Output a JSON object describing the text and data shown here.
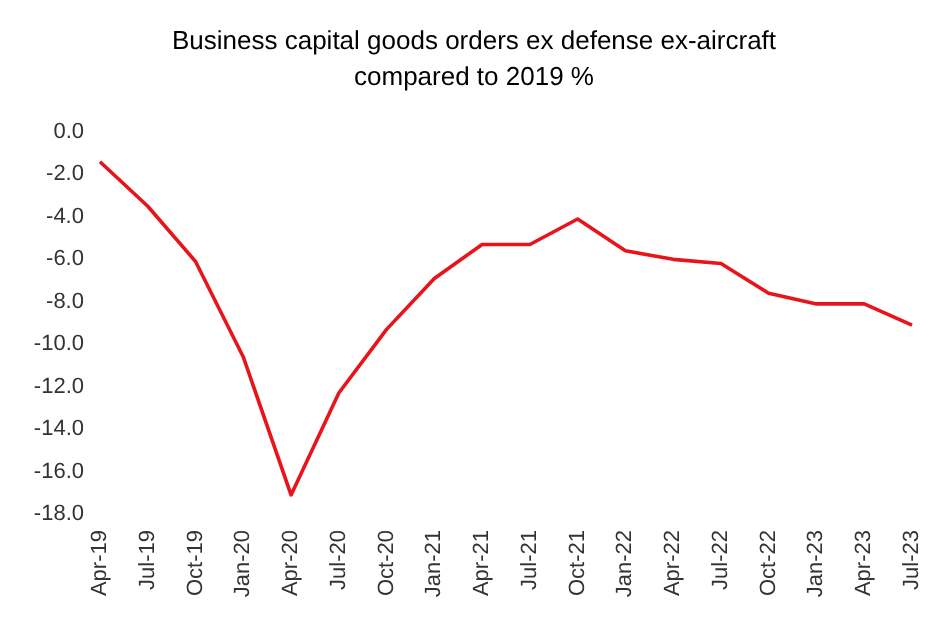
{
  "chart_data": {
    "type": "line",
    "title": "Business capital goods orders ex defense ex-aircraft\ncompared to 2019 %",
    "categories": [
      "Apr-19",
      "Jul-19",
      "Oct-19",
      "Jan-20",
      "Apr-20",
      "Jul-20",
      "Oct-20",
      "Jan-21",
      "Apr-21",
      "Jul-21",
      "Oct-21",
      "Jan-22",
      "Apr-22",
      "Jul-22",
      "Oct-22",
      "Jan-23",
      "Apr-23",
      "Jul-23"
    ],
    "series": [
      {
        "color": "#e8141c",
        "values": [
          -1.4,
          -3.5,
          -6.1,
          -10.6,
          -17.1,
          -12.3,
          -9.3,
          -6.9,
          -5.3,
          -5.3,
          -4.1,
          -5.6,
          -6.0,
          -6.2,
          -7.6,
          -8.1,
          -8.1,
          -9.1
        ]
      }
    ],
    "ylim": [
      -18,
      0
    ],
    "yticks": [
      {
        "value": 0,
        "label": "0.0"
      },
      {
        "value": -2,
        "label": "-2.0"
      },
      {
        "value": -4,
        "label": "-4.0"
      },
      {
        "value": -6,
        "label": "-6.0"
      },
      {
        "value": -8,
        "label": "-8.0"
      },
      {
        "value": -10,
        "label": "-10.0"
      },
      {
        "value": -12,
        "label": "-12.0"
      },
      {
        "value": -14,
        "label": "-14.0"
      },
      {
        "value": -16,
        "label": "-16.0"
      },
      {
        "value": -18,
        "label": "-18.0"
      }
    ],
    "grid": false,
    "marker": "none",
    "line_style": "solid"
  }
}
